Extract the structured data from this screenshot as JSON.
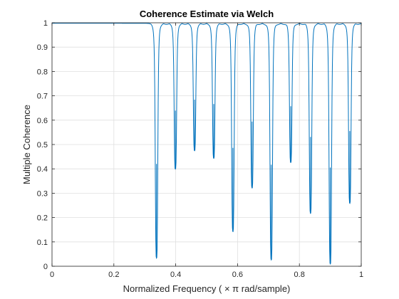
{
  "chart_data": {
    "type": "line",
    "title": "Coherence Estimate via Welch",
    "xlabel": "Normalized  Frequency    ( × π  rad/sample)",
    "ylabel": "Multiple Coherence",
    "xlim": [
      0,
      1
    ],
    "ylim": [
      0,
      1
    ],
    "x_ticks": [
      0,
      0.2,
      0.4,
      0.6,
      0.8,
      1
    ],
    "x_tick_labels": [
      "0",
      "0.2",
      "0.4",
      "0.6",
      "0.8",
      "1"
    ],
    "y_ticks": [
      0,
      0.1,
      0.2,
      0.3,
      0.4,
      0.5,
      0.6,
      0.7,
      0.8,
      0.9,
      1
    ],
    "y_tick_labels": [
      "0",
      "0.1",
      "0.2",
      "0.3",
      "0.4",
      "0.5",
      "0.6",
      "0.7",
      "0.8",
      "0.9",
      "1"
    ],
    "grid": true,
    "line_color": "#0072bd",
    "baseline": 0.998,
    "dips": [
      {
        "x": 0.338,
        "y": 0.035
      },
      {
        "x": 0.399,
        "y": 0.4
      },
      {
        "x": 0.461,
        "y": 0.475
      },
      {
        "x": 0.523,
        "y": 0.445
      },
      {
        "x": 0.585,
        "y": 0.145
      },
      {
        "x": 0.647,
        "y": 0.325
      },
      {
        "x": 0.709,
        "y": 0.03
      },
      {
        "x": 0.772,
        "y": 0.43
      },
      {
        "x": 0.836,
        "y": 0.22
      },
      {
        "x": 0.9,
        "y": 0.01
      },
      {
        "x": 0.963,
        "y": 0.26
      }
    ]
  }
}
